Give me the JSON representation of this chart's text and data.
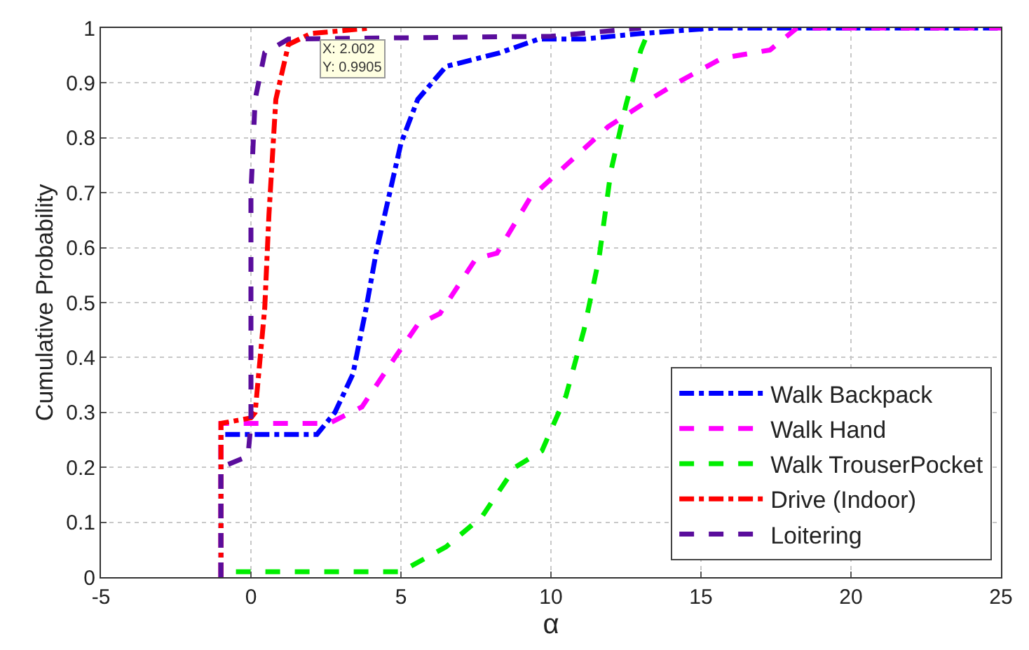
{
  "chart_data": {
    "type": "line",
    "xlabel": "α",
    "ylabel": "Cumulative Probability",
    "xlim": [
      -5,
      25
    ],
    "xticks": [
      -5,
      0,
      5,
      10,
      15,
      20,
      25
    ],
    "ylim": [
      0,
      1
    ],
    "yticks": [
      0,
      0.1,
      0.2,
      0.3,
      0.4,
      0.5,
      0.6,
      0.7,
      0.8,
      0.9,
      1
    ],
    "grid": true,
    "legend": "bottom right",
    "marker": "none",
    "annotations": [
      {
        "text": "X: 2.002\nY: 0.9905",
        "x": 2.002,
        "y": 0.9905
      }
    ],
    "series": [
      {
        "name": "Walk Backpack",
        "color": "#0000ff",
        "line_style": "dashdot",
        "x": [
          -1,
          -1,
          2.2,
          2.8,
          3.4,
          3.84,
          4.17,
          5.0,
          5.56,
          6.5,
          8.3,
          9.6,
          11.1,
          13,
          15.5,
          25
        ],
        "values": [
          0,
          0.26,
          0.26,
          0.3,
          0.37,
          0.49,
          0.59,
          0.79,
          0.87,
          0.93,
          0.955,
          0.98,
          0.98,
          0.99,
          1,
          1
        ]
      },
      {
        "name": "Walk Hand",
        "color": "#ff00ff",
        "line_style": "dashed",
        "x": [
          -1,
          -1,
          2.6,
          3.7,
          4.8,
          5.56,
          6.3,
          7.5,
          8.2,
          9.3,
          10.5,
          11.9,
          13.3,
          14.2,
          15.7,
          17.3,
          18.2,
          25
        ],
        "values": [
          0,
          0.28,
          0.28,
          0.31,
          0.4,
          0.46,
          0.48,
          0.58,
          0.59,
          0.69,
          0.75,
          0.82,
          0.87,
          0.9,
          0.945,
          0.96,
          1,
          1
        ]
      },
      {
        "name": "Walk TrouserPocket",
        "color": "#00ee00",
        "line_style": "dashed",
        "x": [
          -0.5,
          5,
          6.5,
          7.7,
          8.8,
          9.7,
          10.5,
          11.1,
          11.6,
          12.0,
          12.5,
          13.0,
          13.3
        ],
        "values": [
          0.01,
          0.01,
          0.055,
          0.11,
          0.2,
          0.23,
          0.33,
          0.45,
          0.58,
          0.74,
          0.86,
          0.96,
          1
        ]
      },
      {
        "name": "Drive (Indoor)",
        "color": "#ff0000",
        "line_style": "dashdot",
        "x": [
          -1,
          -1,
          0,
          0.14,
          0.46,
          0.6,
          0.83,
          1.25,
          2.0,
          4
        ],
        "values": [
          0,
          0.28,
          0.29,
          0.3,
          0.49,
          0.66,
          0.87,
          0.97,
          0.99,
          1
        ]
      },
      {
        "name": "Loitering",
        "color": "#5a0d9c",
        "line_style": "dashed",
        "x": [
          -1,
          -1,
          -0.1,
          0,
          0,
          0.14,
          0.46,
          1.25,
          10,
          13
        ],
        "values": [
          0,
          0.2,
          0.22,
          0.28,
          0.7,
          0.87,
          0.955,
          0.98,
          0.985,
          1
        ]
      }
    ]
  }
}
